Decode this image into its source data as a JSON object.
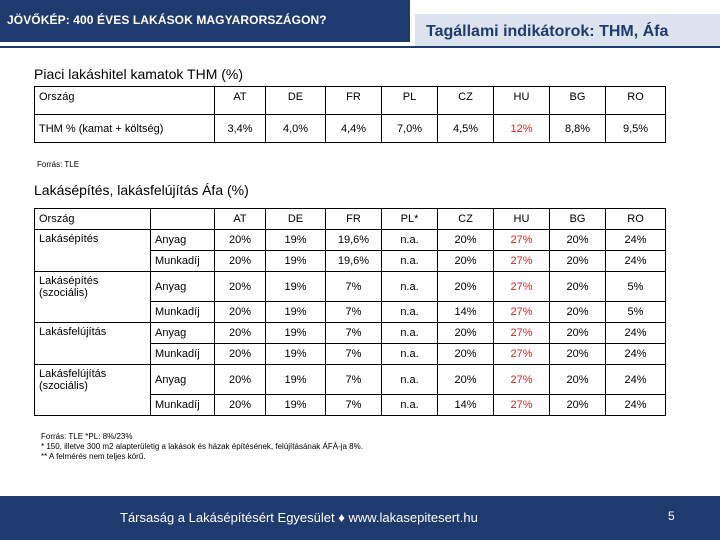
{
  "header": {
    "left_title": "JÖVŐKÉP: 400 ÉVES LAKÁSOK MAGYARORSZÁGON?",
    "right_title": "Tagállami indikátorok: THM, Áfa"
  },
  "section1": {
    "title": "Piaci lakáshitel kamatok THM (%)",
    "columns": [
      "Ország",
      "AT",
      "DE",
      "FR",
      "PL",
      "CZ",
      "HU",
      "BG",
      "RO"
    ],
    "row_label": "THM % (kamat + költség)",
    "values": [
      "3,4%",
      "4,0%",
      "4,4%",
      "7,0%",
      "4,5%",
      "12%",
      "8,8%",
      "9,5%"
    ],
    "source": "Forrás: TLE"
  },
  "section2": {
    "title": "Lakásépítés, lakásfelújítás Áfa (%)",
    "columns": [
      "Ország",
      "AT",
      "DE",
      "FR",
      "PL*",
      "CZ",
      "HU",
      "BG",
      "RO"
    ],
    "groups": [
      {
        "label": "Lakásépítés",
        "rows": [
          {
            "type": "Anyag",
            "values": [
              "20%",
              "19%",
              "19,6%",
              "n.a.",
              "20%",
              "27%",
              "20%",
              "24%"
            ]
          },
          {
            "type": "Munkadíj",
            "values": [
              "20%",
              "19%",
              "19,6%",
              "n.a.",
              "20%",
              "27%",
              "20%",
              "24%"
            ]
          }
        ]
      },
      {
        "label": "Lakásépítés (szociális)",
        "rows": [
          {
            "type": "Anyag",
            "values": [
              "20%",
              "19%",
              "7%",
              "n.a.",
              "20%",
              "27%",
              "20%",
              "5%"
            ]
          },
          {
            "type": "Munkadíj",
            "values": [
              "20%",
              "19%",
              "7%",
              "n.a.",
              "14%",
              "27%",
              "20%",
              "5%"
            ]
          }
        ]
      },
      {
        "label": "Lakásfelújítás",
        "rows": [
          {
            "type": "Anyag",
            "values": [
              "20%",
              "19%",
              "7%",
              "n.a.",
              "20%",
              "27%",
              "20%",
              "24%"
            ]
          },
          {
            "type": "Munkadíj",
            "values": [
              "20%",
              "19%",
              "7%",
              "n.a.",
              "20%",
              "27%",
              "20%",
              "24%"
            ]
          }
        ]
      },
      {
        "label": "Lakásfelújítás (szociális)",
        "rows": [
          {
            "type": "Anyag",
            "values": [
              "20%",
              "19%",
              "7%",
              "n.a.",
              "20%",
              "27%",
              "20%",
              "24%"
            ]
          },
          {
            "type": "Munkadíj",
            "values": [
              "20%",
              "19%",
              "7%",
              "n.a.",
              "14%",
              "27%",
              "20%",
              "24%"
            ]
          }
        ]
      }
    ],
    "footnotes": [
      "Forrás: TLE *PL: 8%/23%",
      "* 150, illetve 300 m2 alapterületig a lakások és házak építésének, felújításának ÁFÁ-ja 8%.",
      "** A felmérés nem teljes körű."
    ]
  },
  "footer": {
    "text": "Társaság a Lakásépítésért Egyesület ♦ www.lakasepitesert.hu",
    "page_number": "5"
  },
  "colors": {
    "navy": "#1f3a6e",
    "highlight_red": "#e0221e",
    "light_band": "#dde3ee"
  }
}
